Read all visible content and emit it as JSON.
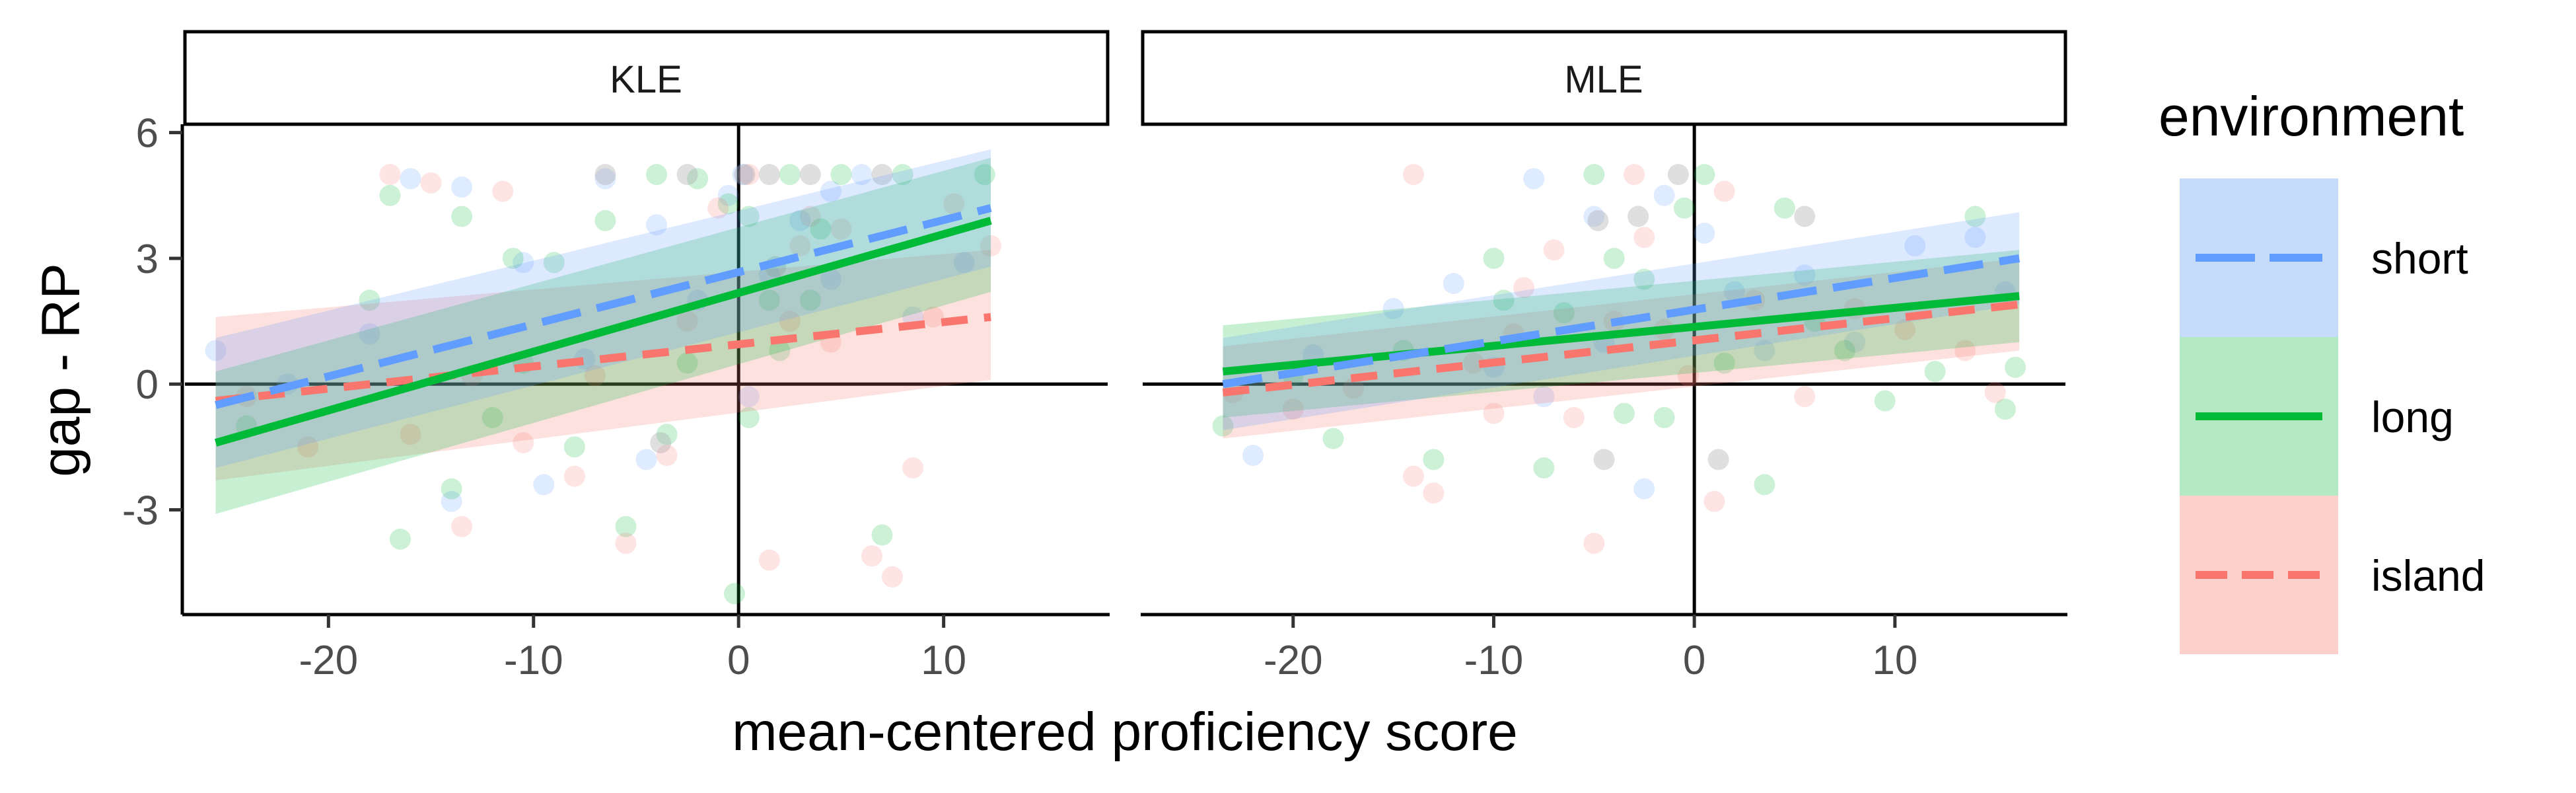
{
  "figure": {
    "ylabel": "gap - RP",
    "xlabel": "mean-centered proficiency score",
    "legend_title": "environment"
  },
  "colors": {
    "short": "#619CFF",
    "long": "#00BA38",
    "island": "#F8766D"
  },
  "chart_data": {
    "type": "scatter",
    "facets": [
      "KLE",
      "MLE"
    ],
    "legend": {
      "title": "environment",
      "placement": "right",
      "entries": [
        {
          "key": "short",
          "label": "short",
          "linetype": "longdash"
        },
        {
          "key": "long",
          "label": "long",
          "linetype": "solid"
        },
        {
          "key": "island",
          "label": "island",
          "linetype": "dashed"
        }
      ]
    },
    "x_ticks": [
      -20,
      -10,
      0,
      10
    ],
    "y_ticks": [
      -3,
      0,
      3,
      6
    ],
    "y_tick_labels": [
      "-3",
      "0",
      "3",
      "6"
    ],
    "x_tick_labels": [
      "-20",
      "-10",
      "0",
      "10"
    ],
    "ylim": [
      -5.5,
      6.2
    ],
    "panels": [
      {
        "facet": "KLE",
        "xlim": [
          -27,
          18
        ],
        "lines": [
          {
            "env": "short",
            "x": [
              -25.5,
              12.3
            ],
            "y": [
              -0.5,
              4.2
            ],
            "se_lo": [
              -2.0,
              2.8
            ],
            "se_hi": [
              1.1,
              5.6
            ]
          },
          {
            "env": "long",
            "x": [
              -25.5,
              12.3
            ],
            "y": [
              -1.4,
              3.9
            ],
            "se_lo": [
              -3.1,
              2.2
            ],
            "se_hi": [
              0.3,
              5.4
            ]
          },
          {
            "env": "island",
            "x": [
              -25.5,
              12.3
            ],
            "y": [
              -0.4,
              1.6
            ],
            "se_lo": [
              -2.3,
              0.1
            ],
            "se_hi": [
              1.6,
              3.2
            ]
          }
        ],
        "points": [
          {
            "env": "short",
            "x": -25.5,
            "y": 0.8
          },
          {
            "env": "short",
            "x": -22,
            "y": 0.0
          },
          {
            "env": "short",
            "x": -18,
            "y": 1.2
          },
          {
            "env": "short",
            "x": -16,
            "y": 4.9
          },
          {
            "env": "short",
            "x": -14,
            "y": -2.8
          },
          {
            "env": "short",
            "x": -13.5,
            "y": 4.7
          },
          {
            "env": "short",
            "x": -10.5,
            "y": 2.9
          },
          {
            "env": "short",
            "x": -9.5,
            "y": -2.4
          },
          {
            "env": "short",
            "x": -6.5,
            "y": 4.9
          },
          {
            "env": "short",
            "x": -4,
            "y": 3.8
          },
          {
            "env": "short",
            "x": -2,
            "y": 2.0
          },
          {
            "env": "short",
            "x": -0.5,
            "y": 4.5
          },
          {
            "env": "short",
            "x": 0.2,
            "y": 5.0
          },
          {
            "env": "short",
            "x": 1.5,
            "y": 2.6
          },
          {
            "env": "short",
            "x": 3,
            "y": 3.9
          },
          {
            "env": "short",
            "x": 4.5,
            "y": 2.5
          },
          {
            "env": "short",
            "x": 6,
            "y": 5.0
          },
          {
            "env": "short",
            "x": 8.5,
            "y": 1.6
          },
          {
            "env": "short",
            "x": 11,
            "y": 2.9
          },
          {
            "env": "short",
            "x": -4.5,
            "y": -1.8
          },
          {
            "env": "short",
            "x": -7.5,
            "y": 0.6
          },
          {
            "env": "short",
            "x": 0.5,
            "y": -0.3
          },
          {
            "env": "short",
            "x": 4.5,
            "y": 4.6
          },
          {
            "env": "long",
            "x": -24,
            "y": -1.0
          },
          {
            "env": "long",
            "x": -18,
            "y": 2.0
          },
          {
            "env": "long",
            "x": -17,
            "y": 4.5
          },
          {
            "env": "long",
            "x": -16.5,
            "y": -3.7
          },
          {
            "env": "long",
            "x": -14,
            "y": -2.5
          },
          {
            "env": "long",
            "x": -13.5,
            "y": 4.0
          },
          {
            "env": "long",
            "x": -11,
            "y": 3.0
          },
          {
            "env": "long",
            "x": -10.5,
            "y": 0.5
          },
          {
            "env": "long",
            "x": -9,
            "y": 2.9
          },
          {
            "env": "long",
            "x": -8,
            "y": -1.5
          },
          {
            "env": "long",
            "x": -6.5,
            "y": 3.9
          },
          {
            "env": "long",
            "x": -5.5,
            "y": -3.4
          },
          {
            "env": "long",
            "x": -4,
            "y": 5.0
          },
          {
            "env": "long",
            "x": -3.5,
            "y": -1.2
          },
          {
            "env": "long",
            "x": -2,
            "y": 4.9
          },
          {
            "env": "long",
            "x": -0.5,
            "y": 4.3
          },
          {
            "env": "long",
            "x": 0.5,
            "y": 4.0
          },
          {
            "env": "long",
            "x": 1.5,
            "y": 2.0
          },
          {
            "env": "long",
            "x": 2.5,
            "y": 5.0
          },
          {
            "env": "long",
            "x": 3.5,
            "y": 2.0
          },
          {
            "env": "long",
            "x": 4,
            "y": 3.7
          },
          {
            "env": "long",
            "x": 5,
            "y": 5.0
          },
          {
            "env": "long",
            "x": 7,
            "y": -3.6
          },
          {
            "env": "long",
            "x": 8,
            "y": 5.0
          },
          {
            "env": "long",
            "x": 12,
            "y": 5.0
          },
          {
            "env": "long",
            "x": 0.5,
            "y": -0.8
          },
          {
            "env": "long",
            "x": -0.2,
            "y": -5.0
          },
          {
            "env": "long",
            "x": -2.5,
            "y": 0.5
          },
          {
            "env": "long",
            "x": 2,
            "y": 0.8
          },
          {
            "env": "long",
            "x": -12,
            "y": -0.8
          },
          {
            "env": "island",
            "x": -24,
            "y": -0.3
          },
          {
            "env": "island",
            "x": -21,
            "y": -1.5
          },
          {
            "env": "island",
            "x": -17,
            "y": 5.0
          },
          {
            "env": "island",
            "x": -15,
            "y": 4.8
          },
          {
            "env": "island",
            "x": -13.5,
            "y": -3.4
          },
          {
            "env": "island",
            "x": -13,
            "y": 0.2
          },
          {
            "env": "island",
            "x": -11.5,
            "y": 4.6
          },
          {
            "env": "island",
            "x": -10.5,
            "y": -1.4
          },
          {
            "env": "island",
            "x": -8,
            "y": -2.2
          },
          {
            "env": "island",
            "x": -7,
            "y": 0.2
          },
          {
            "env": "island",
            "x": -5.5,
            "y": -3.8
          },
          {
            "env": "island",
            "x": -3.5,
            "y": -1.7
          },
          {
            "env": "island",
            "x": -2.5,
            "y": 1.5
          },
          {
            "env": "island",
            "x": -1,
            "y": 4.2
          },
          {
            "env": "island",
            "x": 0.5,
            "y": 5.0
          },
          {
            "env": "island",
            "x": 1.5,
            "y": -4.2
          },
          {
            "env": "island",
            "x": 2.5,
            "y": 1.5
          },
          {
            "env": "island",
            "x": 3.5,
            "y": 4.0
          },
          {
            "env": "island",
            "x": 4.5,
            "y": 1.0
          },
          {
            "env": "island",
            "x": 5,
            "y": 3.7
          },
          {
            "env": "island",
            "x": 6.5,
            "y": -4.1
          },
          {
            "env": "island",
            "x": 7.5,
            "y": -4.6
          },
          {
            "env": "island",
            "x": 9.5,
            "y": 1.6
          },
          {
            "env": "island",
            "x": 10.5,
            "y": 4.3
          },
          {
            "env": "island",
            "x": 12.3,
            "y": 3.3
          },
          {
            "env": "island",
            "x": 8.5,
            "y": -2.0
          },
          {
            "env": "island",
            "x": -16,
            "y": -1.2
          },
          {
            "env": "island",
            "x": 3,
            "y": 3.3
          },
          {
            "env": "mixed",
            "x": -6.5,
            "y": 5.0
          },
          {
            "env": "mixed",
            "x": -2.5,
            "y": 5.0
          },
          {
            "env": "mixed",
            "x": 0.3,
            "y": 5.0
          },
          {
            "env": "mixed",
            "x": 1.5,
            "y": 5.0
          },
          {
            "env": "mixed",
            "x": 3.5,
            "y": 5.0
          },
          {
            "env": "mixed",
            "x": 7,
            "y": 5.0
          },
          {
            "env": "mixed",
            "x": -3.8,
            "y": -1.4
          },
          {
            "env": "mixed",
            "x": 1.8,
            "y": 2.8
          }
        ]
      },
      {
        "facet": "MLE",
        "xlim": [
          -27.5,
          18.5
        ],
        "lines": [
          {
            "env": "short",
            "x": [
              -23.5,
              16.2
            ],
            "y": [
              0.0,
              3.0
            ],
            "se_lo": [
              -1.1,
              1.9
            ],
            "se_hi": [
              1.1,
              4.1
            ]
          },
          {
            "env": "long",
            "x": [
              -23.5,
              16.2
            ],
            "y": [
              0.3,
              2.1
            ],
            "se_lo": [
              -0.8,
              1.0
            ],
            "se_hi": [
              1.4,
              3.2
            ]
          },
          {
            "env": "island",
            "x": [
              -23.5,
              16.2
            ],
            "y": [
              -0.2,
              1.9
            ],
            "se_lo": [
              -1.3,
              0.8
            ],
            "se_hi": [
              0.9,
              3.0
            ]
          }
        ],
        "points": [
          {
            "env": "short",
            "x": -22,
            "y": -1.7
          },
          {
            "env": "short",
            "x": -19,
            "y": 0.7
          },
          {
            "env": "short",
            "x": -15,
            "y": 1.8
          },
          {
            "env": "short",
            "x": -12,
            "y": 2.4
          },
          {
            "env": "short",
            "x": -8,
            "y": 4.9
          },
          {
            "env": "short",
            "x": -7.5,
            "y": -0.3
          },
          {
            "env": "short",
            "x": -5,
            "y": 4.0
          },
          {
            "env": "short",
            "x": -4.5,
            "y": 1.0
          },
          {
            "env": "short",
            "x": -2.5,
            "y": -2.5
          },
          {
            "env": "short",
            "x": -1.5,
            "y": 4.5
          },
          {
            "env": "short",
            "x": 0.5,
            "y": 3.6
          },
          {
            "env": "short",
            "x": 2,
            "y": 2.2
          },
          {
            "env": "short",
            "x": 3.5,
            "y": 0.8
          },
          {
            "env": "short",
            "x": 5.5,
            "y": 2.6
          },
          {
            "env": "short",
            "x": 8,
            "y": 1.0
          },
          {
            "env": "short",
            "x": 11,
            "y": 3.3
          },
          {
            "env": "short",
            "x": 14,
            "y": 3.5
          },
          {
            "env": "short",
            "x": 15.5,
            "y": 2.2
          },
          {
            "env": "short",
            "x": -10,
            "y": 0.4
          },
          {
            "env": "long",
            "x": -23.5,
            "y": -1.0
          },
          {
            "env": "long",
            "x": -18,
            "y": -1.3
          },
          {
            "env": "long",
            "x": -14.5,
            "y": 0.8
          },
          {
            "env": "long",
            "x": -13,
            "y": -1.8
          },
          {
            "env": "long",
            "x": -10,
            "y": 3.0
          },
          {
            "env": "long",
            "x": -9.5,
            "y": 2.0
          },
          {
            "env": "long",
            "x": -7.5,
            "y": -2.0
          },
          {
            "env": "long",
            "x": -6.5,
            "y": 1.7
          },
          {
            "env": "long",
            "x": -5,
            "y": 5.0
          },
          {
            "env": "long",
            "x": -4,
            "y": 3.0
          },
          {
            "env": "long",
            "x": -3.5,
            "y": -0.7
          },
          {
            "env": "long",
            "x": -2.5,
            "y": 2.5
          },
          {
            "env": "long",
            "x": -1.5,
            "y": -0.8
          },
          {
            "env": "long",
            "x": -0.5,
            "y": 4.2
          },
          {
            "env": "long",
            "x": 0.5,
            "y": 5.0
          },
          {
            "env": "long",
            "x": 1.5,
            "y": 0.5
          },
          {
            "env": "long",
            "x": 3.5,
            "y": -2.4
          },
          {
            "env": "long",
            "x": 4.5,
            "y": 4.2
          },
          {
            "env": "long",
            "x": 6,
            "y": 1.5
          },
          {
            "env": "long",
            "x": 7.5,
            "y": 0.8
          },
          {
            "env": "long",
            "x": 9.5,
            "y": -0.4
          },
          {
            "env": "long",
            "x": 12,
            "y": 0.3
          },
          {
            "env": "long",
            "x": 14,
            "y": 4.0
          },
          {
            "env": "long",
            "x": 15.5,
            "y": -0.6
          },
          {
            "env": "long",
            "x": 16,
            "y": 0.4
          },
          {
            "env": "long",
            "x": -20,
            "y": 0.2
          },
          {
            "env": "island",
            "x": -23,
            "y": -0.2
          },
          {
            "env": "island",
            "x": -20,
            "y": -0.6
          },
          {
            "env": "island",
            "x": -17,
            "y": -0.1
          },
          {
            "env": "island",
            "x": -14,
            "y": 5.0
          },
          {
            "env": "island",
            "x": -14,
            "y": -2.2
          },
          {
            "env": "island",
            "x": -13,
            "y": -2.6
          },
          {
            "env": "island",
            "x": -11,
            "y": 0.5
          },
          {
            "env": "island",
            "x": -10,
            "y": -0.7
          },
          {
            "env": "island",
            "x": -8.5,
            "y": 2.3
          },
          {
            "env": "island",
            "x": -7,
            "y": 3.2
          },
          {
            "env": "island",
            "x": -6,
            "y": -0.8
          },
          {
            "env": "island",
            "x": -5,
            "y": -3.8
          },
          {
            "env": "island",
            "x": -4,
            "y": 1.5
          },
          {
            "env": "island",
            "x": -3,
            "y": 5.0
          },
          {
            "env": "island",
            "x": -2.5,
            "y": 3.5
          },
          {
            "env": "island",
            "x": -1.5,
            "y": 1.3
          },
          {
            "env": "island",
            "x": -0.3,
            "y": 0.2
          },
          {
            "env": "island",
            "x": 1,
            "y": -2.8
          },
          {
            "env": "island",
            "x": 1.5,
            "y": 4.6
          },
          {
            "env": "island",
            "x": 3,
            "y": 2.0
          },
          {
            "env": "island",
            "x": 5.5,
            "y": -0.3
          },
          {
            "env": "island",
            "x": 8,
            "y": 1.8
          },
          {
            "env": "island",
            "x": 10.5,
            "y": 1.3
          },
          {
            "env": "island",
            "x": 13.5,
            "y": 0.8
          },
          {
            "env": "island",
            "x": 15,
            "y": -0.2
          },
          {
            "env": "island",
            "x": -9,
            "y": 1.2
          },
          {
            "env": "mixed",
            "x": -4.8,
            "y": 3.9
          },
          {
            "env": "mixed",
            "x": -2.8,
            "y": 4.0
          },
          {
            "env": "mixed",
            "x": -0.8,
            "y": 5.0
          },
          {
            "env": "mixed",
            "x": 1.2,
            "y": -1.8
          },
          {
            "env": "mixed",
            "x": 5.5,
            "y": 4.0
          },
          {
            "env": "mixed",
            "x": -4.5,
            "y": -1.8
          }
        ]
      }
    ]
  }
}
